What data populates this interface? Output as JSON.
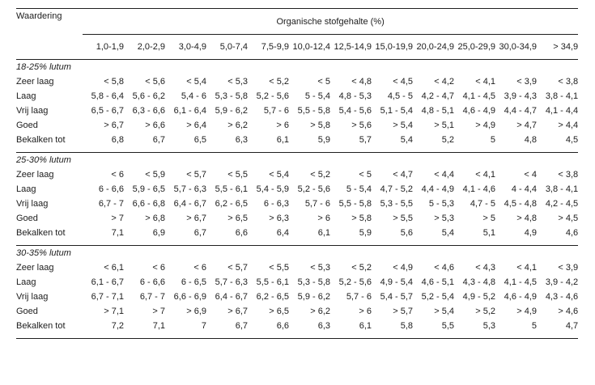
{
  "page": {
    "background": "#ffffff",
    "text_color": "#1c1c1c",
    "line_color": "#1f1f1f"
  },
  "table": {
    "corner_label": "Waardering",
    "group_header": "Organische stofgehalte (%)",
    "columns": [
      "1,0-1,9",
      "2,0-2,9",
      "3,0-4,9",
      "5,0-7,4",
      "7,5-9,9",
      "10,0-12,4",
      "12,5-14,9",
      "15,0-19,9",
      "20,0-24,9",
      "25,0-29,9",
      "30,0-34,9",
      "> 34,9"
    ],
    "sections": [
      {
        "label": "18-25% lutum",
        "rows": [
          {
            "label": "Zeer laag",
            "values": [
              "< 5,8",
              "< 5,6",
              "< 5,4",
              "< 5,3",
              "< 5,2",
              "< 5",
              "< 4,8",
              "< 4,5",
              "< 4,2",
              "< 4,1",
              "< 3,9",
              "< 3,8"
            ]
          },
          {
            "label": "Laag",
            "values": [
              "5,8 - 6,4",
              "5,6 - 6,2",
              "5,4 - 6",
              "5,3 - 5,8",
              "5,2 - 5,6",
              "5 - 5,4",
              "4,8 - 5,3",
              "4,5 - 5",
              "4,2 - 4,7",
              "4,1 - 4,5",
              "3,9 - 4,3",
              "3,8 - 4,1"
            ]
          },
          {
            "label": "Vrij laag",
            "values": [
              "6,5 - 6,7",
              "6,3 - 6,6",
              "6,1 - 6,4",
              "5,9 - 6,2",
              "5,7 - 6",
              "5,5 - 5,8",
              "5,4 - 5,6",
              "5,1 - 5,4",
              "4,8 - 5,1",
              "4,6 - 4,9",
              "4,4 - 4,7",
              "4,1 - 4,4"
            ]
          },
          {
            "label": "Goed",
            "values": [
              "> 6,7",
              "> 6,6",
              "> 6,4",
              "> 6,2",
              "> 6",
              "> 5,8",
              "> 5,6",
              "> 5,4",
              "> 5,1",
              "> 4,9",
              "> 4,7",
              "> 4,4"
            ]
          },
          {
            "label": "Bekalken tot",
            "values": [
              "6,8",
              "6,7",
              "6,5",
              "6,3",
              "6,1",
              "5,9",
              "5,7",
              "5,4",
              "5,2",
              "5",
              "4,8",
              "4,5"
            ]
          }
        ]
      },
      {
        "label": "25-30% lutum",
        "rows": [
          {
            "label": "Zeer laag",
            "values": [
              "< 6",
              "< 5,9",
              "< 5,7",
              "< 5,5",
              "< 5,4",
              "< 5,2",
              "< 5",
              "< 4,7",
              "< 4,4",
              "< 4,1",
              "< 4",
              "< 3,8"
            ]
          },
          {
            "label": "Laag",
            "values": [
              "6 - 6,6",
              "5,9 - 6,5",
              "5,7 - 6,3",
              "5,5 - 6,1",
              "5,4 - 5,9",
              "5,2 - 5,6",
              "5 - 5,4",
              "4,7 - 5,2",
              "4,4 - 4,9",
              "4,1 - 4,6",
              "4 - 4,4",
              "3,8 - 4,1"
            ]
          },
          {
            "label": "Vrij laag",
            "values": [
              "6,7 - 7",
              "6,6 - 6,8",
              "6,4 - 6,7",
              "6,2 - 6,5",
              "6 - 6,3",
              "5,7 - 6",
              "5,5 - 5,8",
              "5,3 - 5,5",
              "5 - 5,3",
              "4,7 - 5",
              "4,5 - 4,8",
              "4,2 - 4,5"
            ]
          },
          {
            "label": "Goed",
            "values": [
              "> 7",
              "> 6,8",
              "> 6,7",
              "> 6,5",
              "> 6,3",
              "> 6",
              "> 5,8",
              "> 5,5",
              "> 5,3",
              "> 5",
              "> 4,8",
              "> 4,5"
            ]
          },
          {
            "label": "Bekalken tot",
            "values": [
              "7,1",
              "6,9",
              "6,7",
              "6,6",
              "6,4",
              "6,1",
              "5,9",
              "5,6",
              "5,4",
              "5,1",
              "4,9",
              "4,6"
            ]
          }
        ]
      },
      {
        "label": "30-35% lutum",
        "rows": [
          {
            "label": "Zeer laag",
            "values": [
              "< 6,1",
              "< 6",
              "< 6",
              "< 5,7",
              "< 5,5",
              "< 5,3",
              "< 5,2",
              "< 4,9",
              "< 4,6",
              "< 4,3",
              "< 4,1",
              "< 3,9"
            ]
          },
          {
            "label": "Laag",
            "values": [
              "6,1 - 6,7",
              "6 - 6,6",
              "6 - 6,5",
              "5,7 - 6,3",
              "5,5 - 6,1",
              "5,3 - 5,8",
              "5,2 - 5,6",
              "4,9 - 5,4",
              "4,6 - 5,1",
              "4,3 - 4,8",
              "4,1 - 4,5",
              "3,9 - 4,2"
            ]
          },
          {
            "label": "Vrij laag",
            "values": [
              "6,7 - 7,1",
              "6,7 - 7",
              "6,6 - 6,9",
              "6,4 - 6,7",
              "6,2 - 6,5",
              "5,9 - 6,2",
              "5,7 - 6",
              "5,4 - 5,7",
              "5,2 - 5,4",
              "4,9 - 5,2",
              "4,6 - 4,9",
              "4,3 - 4,6"
            ]
          },
          {
            "label": "Goed",
            "values": [
              "> 7,1",
              "> 7",
              "> 6,9",
              "> 6,7",
              "> 6,5",
              "> 6,2",
              "> 6",
              "> 5,7",
              "> 5,4",
              "> 5,2",
              "> 4,9",
              "> 4,6"
            ]
          },
          {
            "label": "Bekalken tot",
            "values": [
              "7,2",
              "7,1",
              "7",
              "6,7",
              "6,6",
              "6,3",
              "6,1",
              "5,8",
              "5,5",
              "5,3",
              "5",
              "4,7"
            ]
          }
        ]
      }
    ]
  }
}
